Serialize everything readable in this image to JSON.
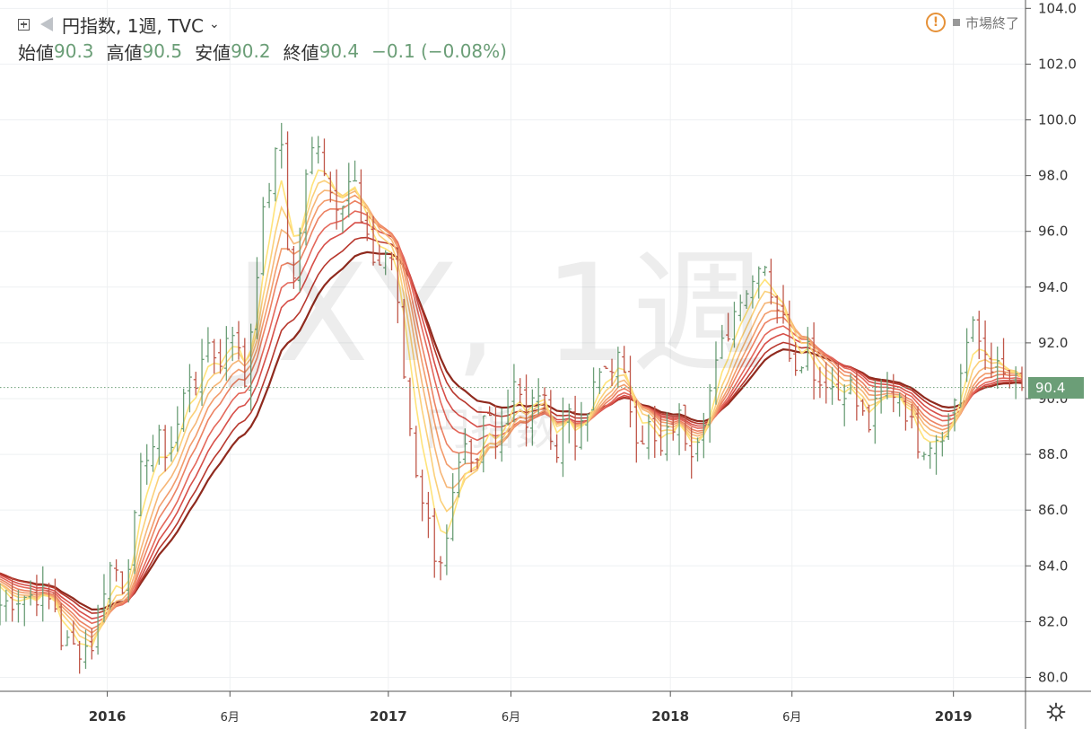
{
  "header": {
    "symbol_title": "円指数, 1週, TVC",
    "ohlc": [
      {
        "label": "始値",
        "value": "90.3"
      },
      {
        "label": "高値",
        "value": "90.5"
      },
      {
        "label": "安値",
        "value": "90.2"
      },
      {
        "label": "終値",
        "value": "90.4"
      }
    ],
    "change": "−0.1 (−0.08%)"
  },
  "status": {
    "text": "市場終了"
  },
  "watermark": {
    "line1": "JXY, 1週",
    "line2": "円指数"
  },
  "last_price_label": "90.4",
  "colors": {
    "up": "#6b9e77",
    "down": "#c0574a",
    "ribbon": [
      "#ffe37a",
      "#fbd07a",
      "#f6b677",
      "#f29c6c",
      "#ec8263",
      "#e4685b",
      "#d74f49",
      "#b8382e",
      "#8f2a1e"
    ]
  },
  "chart_data": {
    "type": "ohlc-bar",
    "interval": "weekly",
    "ylim": [
      79.5,
      104.3
    ],
    "yticks": [
      "80.0",
      "82.0",
      "84.0",
      "86.0",
      "88.0",
      "90.0",
      "92.0",
      "94.0",
      "96.0",
      "98.0",
      "100.0",
      "102.0",
      "104.0"
    ],
    "xticks": [
      {
        "label": "2016",
        "bold": true,
        "t": 0.105
      },
      {
        "label": "6月",
        "bold": false,
        "t": 0.225
      },
      {
        "label": "2017",
        "bold": true,
        "t": 0.38
      },
      {
        "label": "6月",
        "bold": false,
        "t": 0.5
      },
      {
        "label": "2018",
        "bold": true,
        "t": 0.656
      },
      {
        "label": "6月",
        "bold": false,
        "t": 0.775
      },
      {
        "label": "2019",
        "bold": true,
        "t": 0.933
      }
    ],
    "last_price": 90.4,
    "close_path": [
      [
        0.0,
        82.6
      ],
      [
        0.02,
        82.9
      ],
      [
        0.04,
        83.0
      ],
      [
        0.055,
        82.5
      ],
      [
        0.06,
        81.3
      ],
      [
        0.075,
        81.0
      ],
      [
        0.09,
        81.2
      ],
      [
        0.1,
        83.1
      ],
      [
        0.11,
        84.2
      ],
      [
        0.12,
        83.3
      ],
      [
        0.13,
        85.0
      ],
      [
        0.14,
        88.0
      ],
      [
        0.155,
        88.5
      ],
      [
        0.165,
        88.0
      ],
      [
        0.175,
        89.2
      ],
      [
        0.185,
        91.0
      ],
      [
        0.195,
        90.5
      ],
      [
        0.205,
        92.3
      ],
      [
        0.215,
        91.0
      ],
      [
        0.225,
        93.0
      ],
      [
        0.24,
        90.5
      ],
      [
        0.255,
        96.0
      ],
      [
        0.265,
        98.0
      ],
      [
        0.275,
        99.4
      ],
      [
        0.285,
        93.5
      ],
      [
        0.3,
        98.0
      ],
      [
        0.31,
        99.6
      ],
      [
        0.322,
        97.5
      ],
      [
        0.332,
        97.0
      ],
      [
        0.345,
        98.2
      ],
      [
        0.355,
        95.8
      ],
      [
        0.37,
        94.7
      ],
      [
        0.375,
        95.3
      ],
      [
        0.385,
        95.0
      ],
      [
        0.393,
        91.5
      ],
      [
        0.405,
        87.8
      ],
      [
        0.415,
        86.2
      ],
      [
        0.425,
        84.5
      ],
      [
        0.435,
        84.2
      ],
      [
        0.445,
        86.8
      ],
      [
        0.455,
        88.0
      ],
      [
        0.465,
        87.0
      ],
      [
        0.475,
        89.8
      ],
      [
        0.485,
        88.7
      ],
      [
        0.495,
        89.5
      ],
      [
        0.505,
        91.2
      ],
      [
        0.515,
        88.8
      ],
      [
        0.525,
        90.5
      ],
      [
        0.535,
        89.5
      ],
      [
        0.545,
        88.0
      ],
      [
        0.555,
        90.0
      ],
      [
        0.565,
        88.3
      ],
      [
        0.575,
        89.5
      ],
      [
        0.585,
        90.8
      ],
      [
        0.595,
        91.2
      ],
      [
        0.605,
        91.4
      ],
      [
        0.615,
        90.0
      ],
      [
        0.625,
        88.5
      ],
      [
        0.635,
        89.0
      ],
      [
        0.645,
        87.8
      ],
      [
        0.655,
        88.9
      ],
      [
        0.665,
        89.3
      ],
      [
        0.675,
        88.2
      ],
      [
        0.685,
        89.0
      ],
      [
        0.695,
        90.3
      ],
      [
        0.705,
        91.7
      ],
      [
        0.715,
        92.7
      ],
      [
        0.725,
        93.9
      ],
      [
        0.735,
        94.0
      ],
      [
        0.745,
        95.4
      ],
      [
        0.755,
        93.8
      ],
      [
        0.765,
        93.0
      ],
      [
        0.772,
        91.8
      ],
      [
        0.78,
        91.2
      ],
      [
        0.79,
        92.0
      ],
      [
        0.8,
        90.5
      ],
      [
        0.81,
        90.8
      ],
      [
        0.82,
        90.0
      ],
      [
        0.83,
        90.7
      ],
      [
        0.84,
        89.6
      ],
      [
        0.85,
        89.0
      ],
      [
        0.86,
        90.0
      ],
      [
        0.87,
        90.3
      ],
      [
        0.88,
        90.2
      ],
      [
        0.89,
        89.2
      ],
      [
        0.9,
        88.3
      ],
      [
        0.91,
        88.5
      ],
      [
        0.92,
        88.8
      ],
      [
        0.93,
        89.3
      ],
      [
        0.94,
        91.0
      ],
      [
        0.95,
        92.6
      ],
      [
        0.96,
        91.9
      ],
      [
        0.97,
        91.3
      ],
      [
        0.98,
        90.8
      ],
      [
        1.0,
        90.4
      ]
    ],
    "ribbon_periods": [
      4,
      6,
      8,
      10,
      12,
      15,
      18,
      22,
      26
    ]
  }
}
